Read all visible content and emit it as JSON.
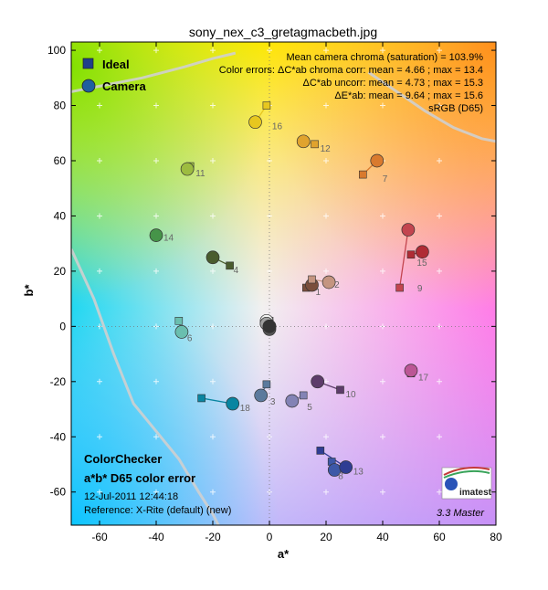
{
  "chart_data": {
    "type": "scatter",
    "title": "sony_nex_c3_gretagmacbeth.jpg",
    "xlabel": "a*",
    "ylabel": "b*",
    "xlim": [
      -70,
      80
    ],
    "ylim": [
      -72,
      103
    ],
    "xticks": [
      -60,
      -40,
      -20,
      0,
      20,
      40,
      60,
      80
    ],
    "yticks": [
      -60,
      -40,
      -20,
      0,
      20,
      40,
      60,
      80,
      100
    ],
    "grid": "dotted crosses",
    "legend": {
      "placement": "top-left",
      "entries": [
        {
          "label": "Ideal",
          "marker": "square",
          "color": "#1f3f8a"
        },
        {
          "label": "Camera",
          "marker": "circle",
          "color": "#1f5fa0"
        }
      ]
    },
    "stats": [
      "Mean camera chroma (saturation) = 103.9%",
      "Color errors: ΔC*ab chroma corr:  mean = 4.66 ;  max = 13.4",
      "ΔC*ab uncorr:  mean = 4.73 ;  max = 15.3",
      "ΔE*ab:  mean = 9.64 ;  max = 15.6",
      "sRGB (D65)"
    ],
    "info": {
      "heading1": "ColorChecker",
      "heading2": "a*b* D65 color error",
      "date": "12-Jul-2011 12:44:18",
      "reference": "Reference: X-Rite (default) (new)"
    },
    "logo_text": "imatest",
    "version": "3.3  Master",
    "patches": [
      {
        "id": "1",
        "ideal": [
          13,
          14
        ],
        "camera": [
          15,
          15
        ],
        "color": "#7a4e3c"
      },
      {
        "id": "2",
        "ideal": [
          15,
          17
        ],
        "camera": [
          21,
          16
        ],
        "color": "#c49580"
      },
      {
        "id": "3",
        "ideal": [
          -1,
          -21
        ],
        "camera": [
          -3,
          -25
        ],
        "color": "#5b7a9d"
      },
      {
        "id": "4",
        "ideal": [
          -14,
          22
        ],
        "camera": [
          -20,
          25
        ],
        "color": "#4a5c2e"
      },
      {
        "id": "5",
        "ideal": [
          12,
          -25
        ],
        "camera": [
          8,
          -27
        ],
        "color": "#8383b5"
      },
      {
        "id": "6",
        "ideal": [
          -32,
          2
        ],
        "camera": [
          -31,
          -2
        ],
        "color": "#6abfaf"
      },
      {
        "id": "7",
        "ideal": [
          33,
          55
        ],
        "camera": [
          38,
          60
        ],
        "color": "#d97a2e"
      },
      {
        "id": "8",
        "ideal": [
          22,
          -49
        ],
        "camera": [
          23,
          -52
        ],
        "color": "#3d58a7"
      },
      {
        "id": "9",
        "ideal": [
          46,
          14
        ],
        "camera": [
          49,
          35
        ],
        "color": "#c3454f"
      },
      {
        "id": "10",
        "ideal": [
          25,
          -23
        ],
        "camera": [
          17,
          -20
        ],
        "color": "#5d3c6a"
      },
      {
        "id": "11",
        "ideal": [
          -28,
          58
        ],
        "camera": [
          -29,
          57
        ],
        "color": "#9dbc40"
      },
      {
        "id": "12",
        "ideal": [
          16,
          66
        ],
        "camera": [
          12,
          67
        ],
        "color": "#e0a32e"
      },
      {
        "id": "13",
        "ideal": [
          18,
          -45
        ],
        "camera": [
          27,
          -51
        ],
        "color": "#2f3d93"
      },
      {
        "id": "14",
        "ideal": [
          -40,
          33
        ],
        "camera": [
          -40,
          33
        ],
        "color": "#469449"
      },
      {
        "id": "15",
        "ideal": [
          50,
          26
        ],
        "camera": [
          54,
          27
        ],
        "color": "#b02c35"
      },
      {
        "id": "16",
        "ideal": [
          -1,
          80
        ],
        "camera": [
          -5,
          74
        ],
        "color": "#e7c71f"
      },
      {
        "id": "17",
        "ideal": [
          50,
          -17
        ],
        "camera": [
          50,
          -16
        ],
        "color": "#bb5695"
      },
      {
        "id": "18",
        "ideal": [
          -24,
          -26
        ],
        "camera": [
          -13,
          -28
        ],
        "color": "#0885a1"
      },
      {
        "id": "19",
        "ideal": [
          0,
          2
        ],
        "camera": [
          -1,
          2
        ],
        "color": "#f3f3f2"
      },
      {
        "id": "20",
        "ideal": [
          0,
          1
        ],
        "camera": [
          -1,
          1
        ],
        "color": "#c8c8c8"
      },
      {
        "id": "21",
        "ideal": [
          0,
          0
        ],
        "camera": [
          -1,
          1
        ],
        "color": "#a0a0a0"
      },
      {
        "id": "22",
        "ideal": [
          0,
          0
        ],
        "camera": [
          0,
          0
        ],
        "color": "#7a7a79"
      },
      {
        "id": "23",
        "ideal": [
          0,
          0
        ],
        "camera": [
          0,
          -1
        ],
        "color": "#555555"
      },
      {
        "id": "24",
        "ideal": [
          0,
          0
        ],
        "camera": [
          0,
          0
        ],
        "color": "#343434"
      }
    ],
    "gamut_boundary": {
      "upper": [
        [
          -70,
          85
        ],
        [
          -60,
          87
        ],
        [
          -45,
          90
        ],
        [
          -30,
          94
        ],
        [
          -20,
          97
        ],
        [
          -12,
          99
        ]
      ],
      "upper_right": [
        [
          35,
          92
        ],
        [
          45,
          85
        ],
        [
          55,
          78
        ],
        [
          65,
          72
        ],
        [
          75,
          68
        ],
        [
          80,
          67
        ]
      ],
      "lower": [
        [
          -70,
          28
        ],
        [
          -62,
          10
        ],
        [
          -55,
          -10
        ],
        [
          -48,
          -28
        ],
        [
          -40,
          -38
        ],
        [
          -32,
          -48
        ],
        [
          -25,
          -60
        ],
        [
          -20,
          -68
        ],
        [
          -18,
          -72
        ]
      ]
    }
  }
}
